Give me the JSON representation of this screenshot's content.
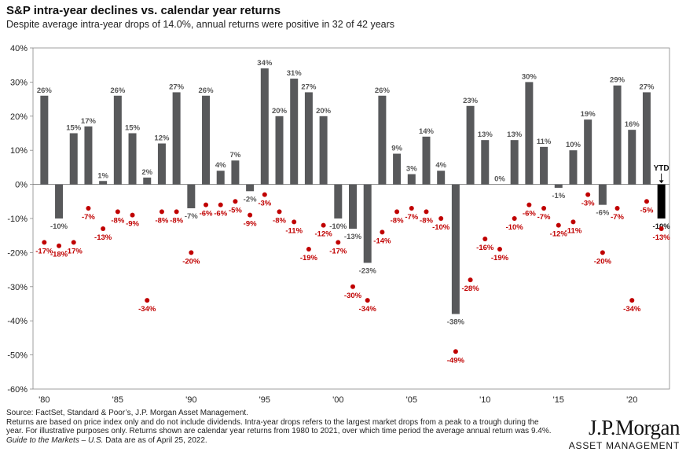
{
  "header": {
    "title": "S&P intra-year declines vs. calendar year returns",
    "subtitle": "Despite average intra-year drops of 14.0%, annual returns were positive in 32 of 42 years"
  },
  "chart_data": {
    "type": "bar",
    "ylim": [
      -60,
      40
    ],
    "y_ticks": [
      "40%",
      "30%",
      "20%",
      "10%",
      "0%",
      "-10%",
      "-20%",
      "-30%",
      "-40%",
      "-50%",
      "-60%"
    ],
    "x_tick_labels": [
      {
        "year": 1980,
        "label": "'80"
      },
      {
        "year": 1985,
        "label": "'85"
      },
      {
        "year": 1990,
        "label": "'90"
      },
      {
        "year": 1995,
        "label": "'95"
      },
      {
        "year": 2000,
        "label": "'00"
      },
      {
        "year": 2005,
        "label": "'05"
      },
      {
        "year": 2010,
        "label": "'10"
      },
      {
        "year": 2015,
        "label": "'15"
      },
      {
        "year": 2020,
        "label": "'20"
      }
    ],
    "years": [
      1980,
      1981,
      1982,
      1983,
      1984,
      1985,
      1986,
      1987,
      1988,
      1989,
      1990,
      1991,
      1992,
      1993,
      1994,
      1995,
      1996,
      1997,
      1998,
      1999,
      2000,
      2001,
      2002,
      2003,
      2004,
      2005,
      2006,
      2007,
      2008,
      2009,
      2010,
      2011,
      2012,
      2013,
      2014,
      2015,
      2016,
      2017,
      2018,
      2019,
      2020,
      2021
    ],
    "series": [
      {
        "name": "calendar year returns",
        "values": [
          26,
          -10,
          15,
          17,
          1,
          26,
          15,
          2,
          12,
          27,
          -7,
          26,
          4,
          7,
          -2,
          34,
          20,
          31,
          27,
          20,
          -10,
          -13,
          -23,
          26,
          9,
          3,
          14,
          4,
          -38,
          23,
          13,
          0,
          13,
          30,
          11,
          -1,
          10,
          19,
          -6,
          29,
          16,
          27
        ],
        "labels": [
          "26%",
          "-10%",
          "15%",
          "17%",
          "1%",
          "26%",
          "15%",
          "2%",
          "12%",
          "27%",
          "-7%",
          "26%",
          "4%",
          "7%",
          "-2%",
          "34%",
          "20%",
          "31%",
          "27%",
          "20%",
          "-10%",
          "-13%",
          "-23%",
          "26%",
          "9%",
          "3%",
          "14%",
          "4%",
          "-38%",
          "23%",
          "13%",
          "0%",
          "13%",
          "30%",
          "11%",
          "-1%",
          "10%",
          "19%",
          "-6%",
          "29%",
          "16%",
          "27%"
        ],
        "color": "#58595b"
      },
      {
        "name": "intra-year declines",
        "values": [
          -17,
          -18,
          -17,
          -7,
          -13,
          -8,
          -9,
          -34,
          -8,
          -8,
          -20,
          -6,
          -6,
          -5,
          -9,
          -3,
          -8,
          -11,
          -19,
          -12,
          -17,
          -30,
          -34,
          -14,
          -8,
          -7,
          -8,
          -10,
          -49,
          -28,
          -16,
          -19,
          -10,
          -6,
          -7,
          -12,
          -11,
          -3,
          -20,
          -7,
          -34,
          -5
        ],
        "labels": [
          "-17%",
          "-18%",
          "-17%",
          "-7%",
          "-13%",
          "-8%",
          "-9%",
          "-34%",
          "-8%",
          "-8%",
          "-20%",
          "-6%",
          "-6%",
          "-5%",
          "-9%",
          "-3%",
          "-8%",
          "-11%",
          "-19%",
          "-12%",
          "-17%",
          "-30%",
          "-34%",
          "-14%",
          "-8%",
          "-7%",
          "-8%",
          "-10%",
          "-49%",
          "-28%",
          "-16%",
          "-19%",
          "-10%",
          "-6%",
          "-7%",
          "-12%",
          "-11%",
          "-3%",
          "-20%",
          "-7%",
          "-34%",
          "-5%"
        ],
        "color": "#c00000"
      }
    ],
    "ytd": {
      "label": "YTD",
      "return_value": -10,
      "return_label": "-10%",
      "decline_value": -13,
      "decline_label": "-13%",
      "color": "#000000"
    }
  },
  "footer": {
    "line1": "Source: FactSet, Standard & Poor’s, J.P. Morgan Asset Management.",
    "line2": "Returns are based on price index only and do not include dividends. Intra-year drops refers to the largest market drops from a peak to a trough during the year. For illustrative purposes only. Returns shown are calendar year returns from 1980 to 2021, over which time period the average annual return was 9.4%.",
    "guide": "Guide to the Markets – U.S.",
    "date_note": " Data are as of April 25, 2022."
  },
  "logo": {
    "brand": "J.P.Morgan",
    "sub": "ASSET MANAGEMENT"
  }
}
